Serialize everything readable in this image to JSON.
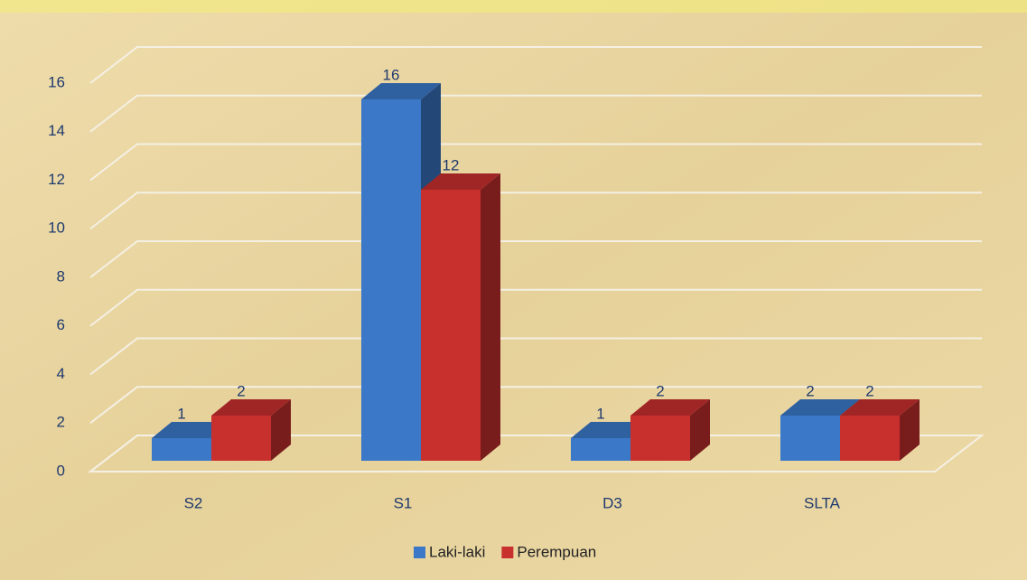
{
  "chart_data": {
    "type": "bar3d",
    "categories": [
      "S2",
      "S1",
      "D3",
      "SLTA"
    ],
    "series": [
      {
        "name": "Laki-laki",
        "color": "#3b78c8",
        "values": [
          1,
          16,
          1,
          2
        ]
      },
      {
        "name": "Perempuan",
        "color": "#c8302e",
        "values": [
          2,
          12,
          2,
          2
        ]
      }
    ],
    "ylim": [
      0,
      16
    ],
    "yticks": [
      0,
      2,
      4,
      6,
      8,
      10,
      12,
      14,
      16
    ],
    "grid": true,
    "legend": "bottom"
  }
}
